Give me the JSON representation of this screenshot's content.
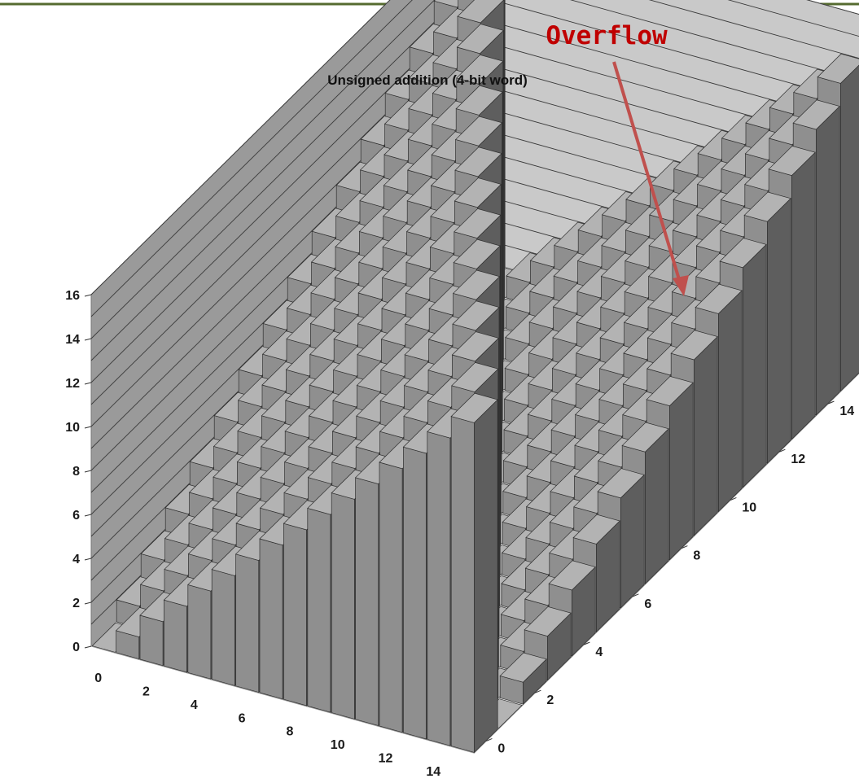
{
  "annotation": {
    "text": "Overflow"
  },
  "chart_data": {
    "type": "bar3d",
    "title": "Unsigned addition (4-bit word)",
    "x": [
      0,
      1,
      2,
      3,
      4,
      5,
      6,
      7,
      8,
      9,
      10,
      11,
      12,
      13,
      14,
      15
    ],
    "y": [
      0,
      1,
      2,
      3,
      4,
      5,
      6,
      7,
      8,
      9,
      10,
      11,
      12,
      13,
      14,
      15
    ],
    "z_formula": "(x + y) mod 16",
    "x_ticks": [
      "0",
      "2",
      "4",
      "6",
      "8",
      "10",
      "12",
      "14"
    ],
    "y_ticks": [
      "0",
      "2",
      "4",
      "6",
      "8",
      "10",
      "12",
      "14"
    ],
    "z_ticks": [
      "0",
      "2",
      "4",
      "6",
      "8",
      "10",
      "12",
      "14",
      "16"
    ],
    "zlim": [
      0,
      16
    ],
    "grid": true,
    "colors": {
      "front": "#8f8f8f",
      "side": "#5e5e5e",
      "top": "#b3b3b3",
      "left_wall": "#9a9a9a",
      "back_wall": "#c9c9c9",
      "arrow": "#c0504d",
      "header_line": "#556b2f"
    }
  }
}
